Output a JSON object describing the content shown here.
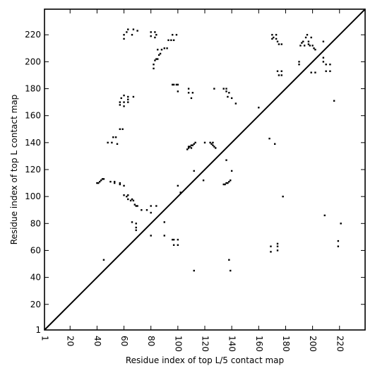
{
  "chart_data": {
    "type": "scatter",
    "title": "",
    "xlabel": "Residue index of top L/5 contact map",
    "ylabel": "Residue index of top L contact map",
    "xlim": [
      1,
      239
    ],
    "ylim": [
      1,
      239
    ],
    "x_ticks": [
      1,
      20,
      40,
      60,
      80,
      100,
      120,
      140,
      160,
      180,
      200,
      220
    ],
    "y_ticks": [
      1,
      20,
      40,
      60,
      80,
      100,
      120,
      140,
      160,
      180,
      200,
      220
    ],
    "diagonal_line": true,
    "grid": false,
    "marker_color": "#000000",
    "series": [
      {
        "points_lower": [
          [
            40,
            110
          ],
          [
            41,
            110
          ],
          [
            42,
            111
          ],
          [
            43,
            112
          ],
          [
            44,
            113
          ],
          [
            45,
            113
          ],
          [
            50,
            111
          ],
          [
            53,
            110
          ],
          [
            53,
            111
          ],
          [
            57,
            109
          ],
          [
            57,
            110
          ],
          [
            60,
            108
          ],
          [
            60,
            101
          ],
          [
            62,
            100
          ],
          [
            63,
            98
          ],
          [
            63,
            101
          ],
          [
            65,
            97
          ],
          [
            66,
            98
          ],
          [
            67,
            97
          ],
          [
            68,
            94
          ],
          [
            69,
            93
          ],
          [
            70,
            93
          ],
          [
            66,
            81
          ],
          [
            69,
            80
          ],
          [
            69,
            77
          ],
          [
            69,
            75
          ],
          [
            73,
            90
          ],
          [
            77,
            90
          ],
          [
            80,
            88
          ],
          [
            80,
            93
          ],
          [
            84,
            93
          ],
          [
            80,
            71
          ],
          [
            90,
            81
          ],
          [
            90,
            71
          ],
          [
            96,
            68
          ],
          [
            97,
            68
          ],
          [
            97,
            64
          ],
          [
            100,
            64
          ],
          [
            100,
            68
          ],
          [
            100,
            108
          ],
          [
            102,
            103
          ],
          [
            45,
            53
          ],
          [
            112,
            45
          ],
          [
            119,
            112
          ],
          [
            107,
            135
          ],
          [
            108,
            136
          ],
          [
            109,
            137
          ],
          [
            110,
            138
          ],
          [
            111,
            138
          ],
          [
            112,
            139
          ],
          [
            113,
            140
          ],
          [
            108,
            137
          ],
          [
            110,
            136
          ],
          [
            112,
            119
          ],
          [
            120,
            140
          ],
          [
            124,
            140
          ],
          [
            125,
            139
          ],
          [
            126,
            138
          ],
          [
            127,
            137
          ],
          [
            128,
            136
          ],
          [
            126,
            140
          ],
          [
            134,
            109
          ],
          [
            135,
            109
          ],
          [
            136,
            110
          ],
          [
            137,
            110
          ],
          [
            138,
            111
          ],
          [
            139,
            112
          ],
          [
            140,
            119
          ],
          [
            136,
            127
          ],
          [
            138,
            53
          ],
          [
            139,
            45
          ],
          [
            169,
            59
          ],
          [
            169,
            63
          ],
          [
            174,
            63
          ],
          [
            174,
            60
          ],
          [
            174,
            65
          ],
          [
            178,
            100
          ],
          [
            172,
            139
          ],
          [
            168,
            143
          ],
          [
            209,
            86
          ],
          [
            219,
            63
          ],
          [
            219,
            67
          ],
          [
            221,
            80
          ],
          [
            216,
            171
          ]
        ],
        "points_upper": [
          [
            52,
            144
          ],
          [
            54,
            144
          ],
          [
            55,
            139
          ],
          [
            48,
            140
          ],
          [
            51,
            140
          ],
          [
            57,
            150
          ],
          [
            59,
            150
          ],
          [
            57,
            168
          ],
          [
            57,
            170
          ],
          [
            58,
            173
          ],
          [
            60,
            170
          ],
          [
            60,
            175
          ],
          [
            60,
            167
          ],
          [
            63,
            170
          ],
          [
            63,
            172
          ],
          [
            63,
            174
          ],
          [
            67,
            174
          ],
          [
            60,
            217
          ],
          [
            60,
            220
          ],
          [
            62,
            222
          ],
          [
            63,
            224
          ],
          [
            66,
            220
          ],
          [
            67,
            224
          ],
          [
            70,
            223
          ],
          [
            80,
            219
          ],
          [
            80,
            222
          ],
          [
            83,
            222
          ],
          [
            84,
            220
          ],
          [
            83,
            218
          ],
          [
            82,
            195
          ],
          [
            82,
            198
          ],
          [
            83,
            201
          ],
          [
            84,
            202
          ],
          [
            85,
            209
          ],
          [
            85,
            202
          ],
          [
            86,
            205
          ],
          [
            87,
            206
          ],
          [
            88,
            209
          ],
          [
            90,
            210
          ],
          [
            92,
            210
          ],
          [
            93,
            216
          ],
          [
            95,
            216
          ],
          [
            96,
            220
          ],
          [
            99,
            220
          ],
          [
            97,
            216
          ],
          [
            96,
            183
          ],
          [
            97,
            183
          ],
          [
            99,
            183
          ],
          [
            100,
            183
          ],
          [
            100,
            178
          ],
          [
            108,
            177
          ],
          [
            108,
            180
          ],
          [
            110,
            173
          ],
          [
            111,
            177
          ],
          [
            127,
            180
          ],
          [
            134,
            180
          ],
          [
            136,
            178
          ],
          [
            136,
            180
          ],
          [
            137,
            174
          ],
          [
            138,
            177
          ],
          [
            140,
            173
          ],
          [
            143,
            169
          ],
          [
            160,
            166
          ],
          [
            170,
            217
          ],
          [
            170,
            220
          ],
          [
            171,
            218
          ],
          [
            173,
            220
          ],
          [
            173,
            217
          ],
          [
            174,
            215
          ],
          [
            175,
            213
          ],
          [
            177,
            213
          ],
          [
            174,
            193
          ],
          [
            175,
            190
          ],
          [
            177,
            190
          ],
          [
            177,
            193
          ],
          [
            190,
            200
          ],
          [
            190,
            198
          ],
          [
            191,
            212
          ],
          [
            192,
            214
          ],
          [
            193,
            215
          ],
          [
            194,
            212
          ],
          [
            195,
            218
          ],
          [
            196,
            220
          ],
          [
            197,
            213
          ],
          [
            197,
            215
          ],
          [
            198,
            212
          ],
          [
            199,
            218
          ],
          [
            200,
            212
          ],
          [
            201,
            210
          ],
          [
            202,
            209
          ],
          [
            199,
            192
          ],
          [
            202,
            192
          ],
          [
            208,
            215
          ],
          [
            208,
            203
          ],
          [
            208,
            200
          ],
          [
            210,
            198
          ],
          [
            210,
            193
          ],
          [
            213,
            198
          ],
          [
            213,
            193
          ]
        ]
      }
    ]
  }
}
